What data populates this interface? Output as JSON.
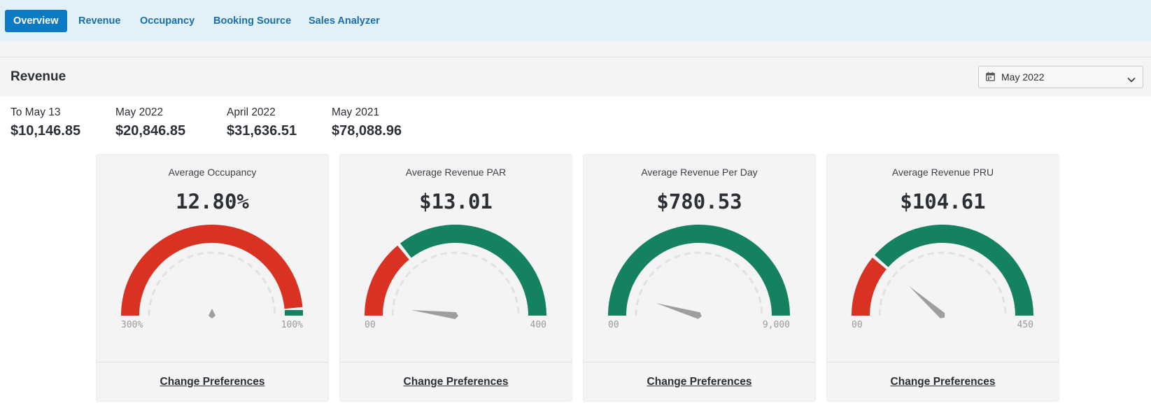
{
  "nav": {
    "tabs": [
      {
        "label": "Overview",
        "active": true
      },
      {
        "label": "Revenue",
        "active": false
      },
      {
        "label": "Occupancy",
        "active": false
      },
      {
        "label": "Booking Source",
        "active": false
      },
      {
        "label": "Sales Analyzer",
        "active": false
      }
    ]
  },
  "section": {
    "title": "Revenue",
    "month_select": {
      "value": "May 2022",
      "icon": "calendar-icon"
    }
  },
  "summary": [
    {
      "label": "To May 13",
      "value": "$10,146.85"
    },
    {
      "label": "May 2022",
      "value": "$20,846.85"
    },
    {
      "label": "April 2022",
      "value": "$31,636.51"
    },
    {
      "label": "May 2021",
      "value": "$78,088.96"
    }
  ],
  "colors": {
    "red": "#d93122",
    "green": "#148160",
    "needle": "#9e9e9e",
    "accent": "#0d7bc4"
  },
  "cards": [
    {
      "title": "Average Occupancy",
      "value": "12.80%",
      "min_label": "300%",
      "max_label": "100%",
      "red_fraction": 0.97,
      "needle_fraction": 0.5,
      "link": "Change Preferences"
    },
    {
      "title": "Average Revenue PAR",
      "value": "$13.01",
      "min_label": "00",
      "max_label": "400",
      "red_fraction": 0.28,
      "needle_fraction": 0.04,
      "link": "Change Preferences"
    },
    {
      "title": "Average Revenue Per Day",
      "value": "$780.53",
      "min_label": "00",
      "max_label": "9,000",
      "red_fraction": 0.0,
      "needle_fraction": 0.09,
      "link": "Change Preferences"
    },
    {
      "title": "Average Revenue PRU",
      "value": "$104.61",
      "min_label": "00",
      "max_label": "450",
      "red_fraction": 0.22,
      "needle_fraction": 0.23,
      "link": "Change Preferences"
    }
  ]
}
